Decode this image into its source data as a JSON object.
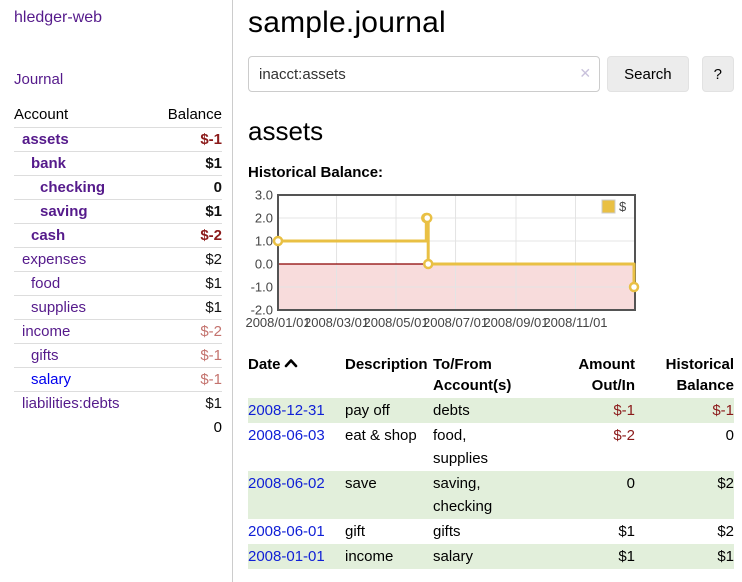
{
  "app": {
    "title": "hledger-web"
  },
  "sidebar": {
    "journal_link": "Journal",
    "table": {
      "account_header": "Account",
      "balance_header": "Balance",
      "rows": [
        {
          "name": "assets",
          "balance": "$-1",
          "depth": 1,
          "bold": true,
          "negative": true,
          "visited": true
        },
        {
          "name": "bank",
          "balance": "$1",
          "depth": 2,
          "bold": true,
          "negative": false,
          "visited": true
        },
        {
          "name": "checking",
          "balance": "0",
          "depth": 3,
          "bold": true,
          "negative": false,
          "visited": true
        },
        {
          "name": "saving",
          "balance": "$1",
          "depth": 3,
          "bold": true,
          "negative": false,
          "visited": true
        },
        {
          "name": "cash",
          "balance": "$-2",
          "depth": 2,
          "bold": true,
          "negative": true,
          "visited": true
        },
        {
          "name": "expenses",
          "balance": "$2",
          "depth": 1,
          "bold": false,
          "negative": false,
          "visited": true
        },
        {
          "name": "food",
          "balance": "$1",
          "depth": 2,
          "bold": false,
          "negative": false,
          "visited": true
        },
        {
          "name": "supplies",
          "balance": "$1",
          "depth": 2,
          "bold": false,
          "negative": false,
          "visited": true
        },
        {
          "name": "income",
          "balance": "$-2",
          "depth": 1,
          "bold": false,
          "negative": true,
          "visited": true
        },
        {
          "name": "gifts",
          "balance": "$-1",
          "depth": 2,
          "bold": false,
          "negative": true,
          "visited": true
        },
        {
          "name": "salary",
          "balance": "$-1",
          "depth": 2,
          "bold": false,
          "negative": true,
          "visited": false
        },
        {
          "name": "liabilities:debts",
          "balance": "$1",
          "depth": 1,
          "bold": false,
          "negative": false,
          "visited": true
        }
      ],
      "total": "0"
    }
  },
  "main": {
    "title": "sample.journal",
    "search": {
      "value": "inacct:assets",
      "clear_icon": "✕",
      "button": "Search",
      "help_button": "?"
    },
    "account_heading": "assets",
    "chart_heading": "Historical Balance:"
  },
  "chart_data": {
    "type": "line",
    "step": true,
    "title": "Historical Balance:",
    "series": [
      {
        "name": "$",
        "color": "#e9c044",
        "points": [
          [
            "2008-01-01",
            1
          ],
          [
            "2008-06-01",
            2
          ],
          [
            "2008-06-02",
            2
          ],
          [
            "2008-06-03",
            0
          ],
          [
            "2008-12-31",
            -1
          ]
        ]
      }
    ],
    "x_ticks": [
      "2008/01/01",
      "2008/03/01",
      "2008/05/01",
      "2008/07/01",
      "2008/09/01",
      "2008/11/01"
    ],
    "y_ticks": [
      "3.0",
      "2.0",
      "1.0",
      "0.0",
      "-1.0",
      "-2.0"
    ],
    "xlim": [
      "2008-01-01",
      "2008-12-31"
    ],
    "ylim": [
      -2,
      3
    ],
    "grid": true,
    "legend_position": "top-right",
    "negative_region_color": "#f8dcdc",
    "zero_line_color": "#8b0000",
    "border_color": "#545454",
    "gridline_color": "#e4e4e4"
  },
  "register": {
    "headers": {
      "date": "Date",
      "description": "Description",
      "account": "To/From Account(s)",
      "amount": "Amount Out/In",
      "balance": "Historical Balance"
    },
    "rows": [
      {
        "date": "2008-12-31",
        "description": "pay off",
        "account": "debts",
        "amount": "$-1",
        "balance": "$-1",
        "amount_negative": true,
        "balance_negative": true
      },
      {
        "date": "2008-06-03",
        "description": "eat & shop",
        "account": "food, supplies",
        "amount": "$-2",
        "balance": "0",
        "amount_negative": true,
        "balance_negative": false
      },
      {
        "date": "2008-06-02",
        "description": "save",
        "account": "saving, checking",
        "amount": "0",
        "balance": "$2",
        "amount_negative": false,
        "balance_negative": false
      },
      {
        "date": "2008-06-01",
        "description": "gift",
        "account": "gifts",
        "amount": "$1",
        "balance": "$2",
        "amount_negative": false,
        "balance_negative": false
      },
      {
        "date": "2008-01-01",
        "description": "income",
        "account": "salary",
        "amount": "$1",
        "balance": "$1",
        "amount_negative": false,
        "balance_negative": false
      }
    ]
  },
  "colors": {
    "visited_link_purple": "#551a8b",
    "unvisited_link_blue": "#0000ee",
    "negative_strong_red": "#8b1a1a",
    "negative_soft_red": "#c4736e",
    "row_stripe_green": "#e2efdb",
    "chart_line_gold": "#e9c044",
    "button_gray": "#ececec"
  }
}
